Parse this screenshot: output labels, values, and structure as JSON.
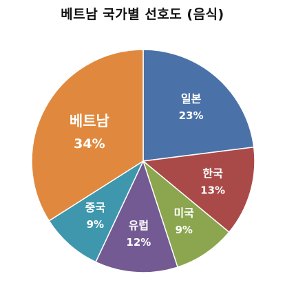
{
  "chart_data": {
    "type": "pie",
    "title": "베트남 국가별 선호도 (음식)",
    "categories": [
      "일본",
      "한국",
      "미국",
      "유럽",
      "중국",
      "베트남"
    ],
    "values": [
      23,
      13,
      9,
      12,
      9,
      34
    ],
    "value_labels": [
      "23%",
      "13%",
      "9%",
      "12%",
      "9%",
      "34%"
    ],
    "colors": [
      "#4A72A8",
      "#AA4A48",
      "#8BA64E",
      "#745A93",
      "#3F97AD",
      "#E0893E"
    ],
    "start_angle_deg": 0,
    "direction": "clockwise",
    "legend": "none",
    "labels_inside": true
  }
}
